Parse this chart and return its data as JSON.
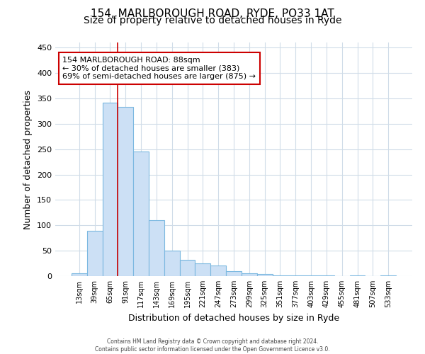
{
  "title1": "154, MARLBOROUGH ROAD, RYDE, PO33 1AT",
  "title2": "Size of property relative to detached houses in Ryde",
  "xlabel": "Distribution of detached houses by size in Ryde",
  "ylabel": "Number of detached properties",
  "bar_color": "#cce0f5",
  "bar_edge_color": "#7bb8e0",
  "categories": [
    "13sqm",
    "39sqm",
    "65sqm",
    "91sqm",
    "117sqm",
    "143sqm",
    "169sqm",
    "195sqm",
    "221sqm",
    "247sqm",
    "273sqm",
    "299sqm",
    "325sqm",
    "351sqm",
    "377sqm",
    "403sqm",
    "429sqm",
    "455sqm",
    "481sqm",
    "507sqm",
    "533sqm"
  ],
  "values": [
    5,
    89,
    342,
    333,
    245,
    110,
    50,
    32,
    25,
    21,
    10,
    5,
    4,
    2,
    2,
    2,
    1,
    0,
    1,
    0,
    1
  ],
  "vline_x": 2.5,
  "vline_color": "#cc0000",
  "annotation_line1": "154 MARLBOROUGH ROAD: 88sqm",
  "annotation_line2": "← 30% of detached houses are smaller (383)",
  "annotation_line3": "69% of semi-detached houses are larger (875) →",
  "annotation_box_color": "#ffffff",
  "annotation_box_edge": "#cc0000",
  "ylim": [
    0,
    460
  ],
  "yticks": [
    0,
    50,
    100,
    150,
    200,
    250,
    300,
    350,
    400,
    450
  ],
  "footer1": "Contains HM Land Registry data © Crown copyright and database right 2024.",
  "footer2": "Contains public sector information licensed under the Open Government Licence v3.0.",
  "bg_color": "#ffffff",
  "grid_color": "#d0dce8",
  "title1_fontsize": 11,
  "title2_fontsize": 10
}
